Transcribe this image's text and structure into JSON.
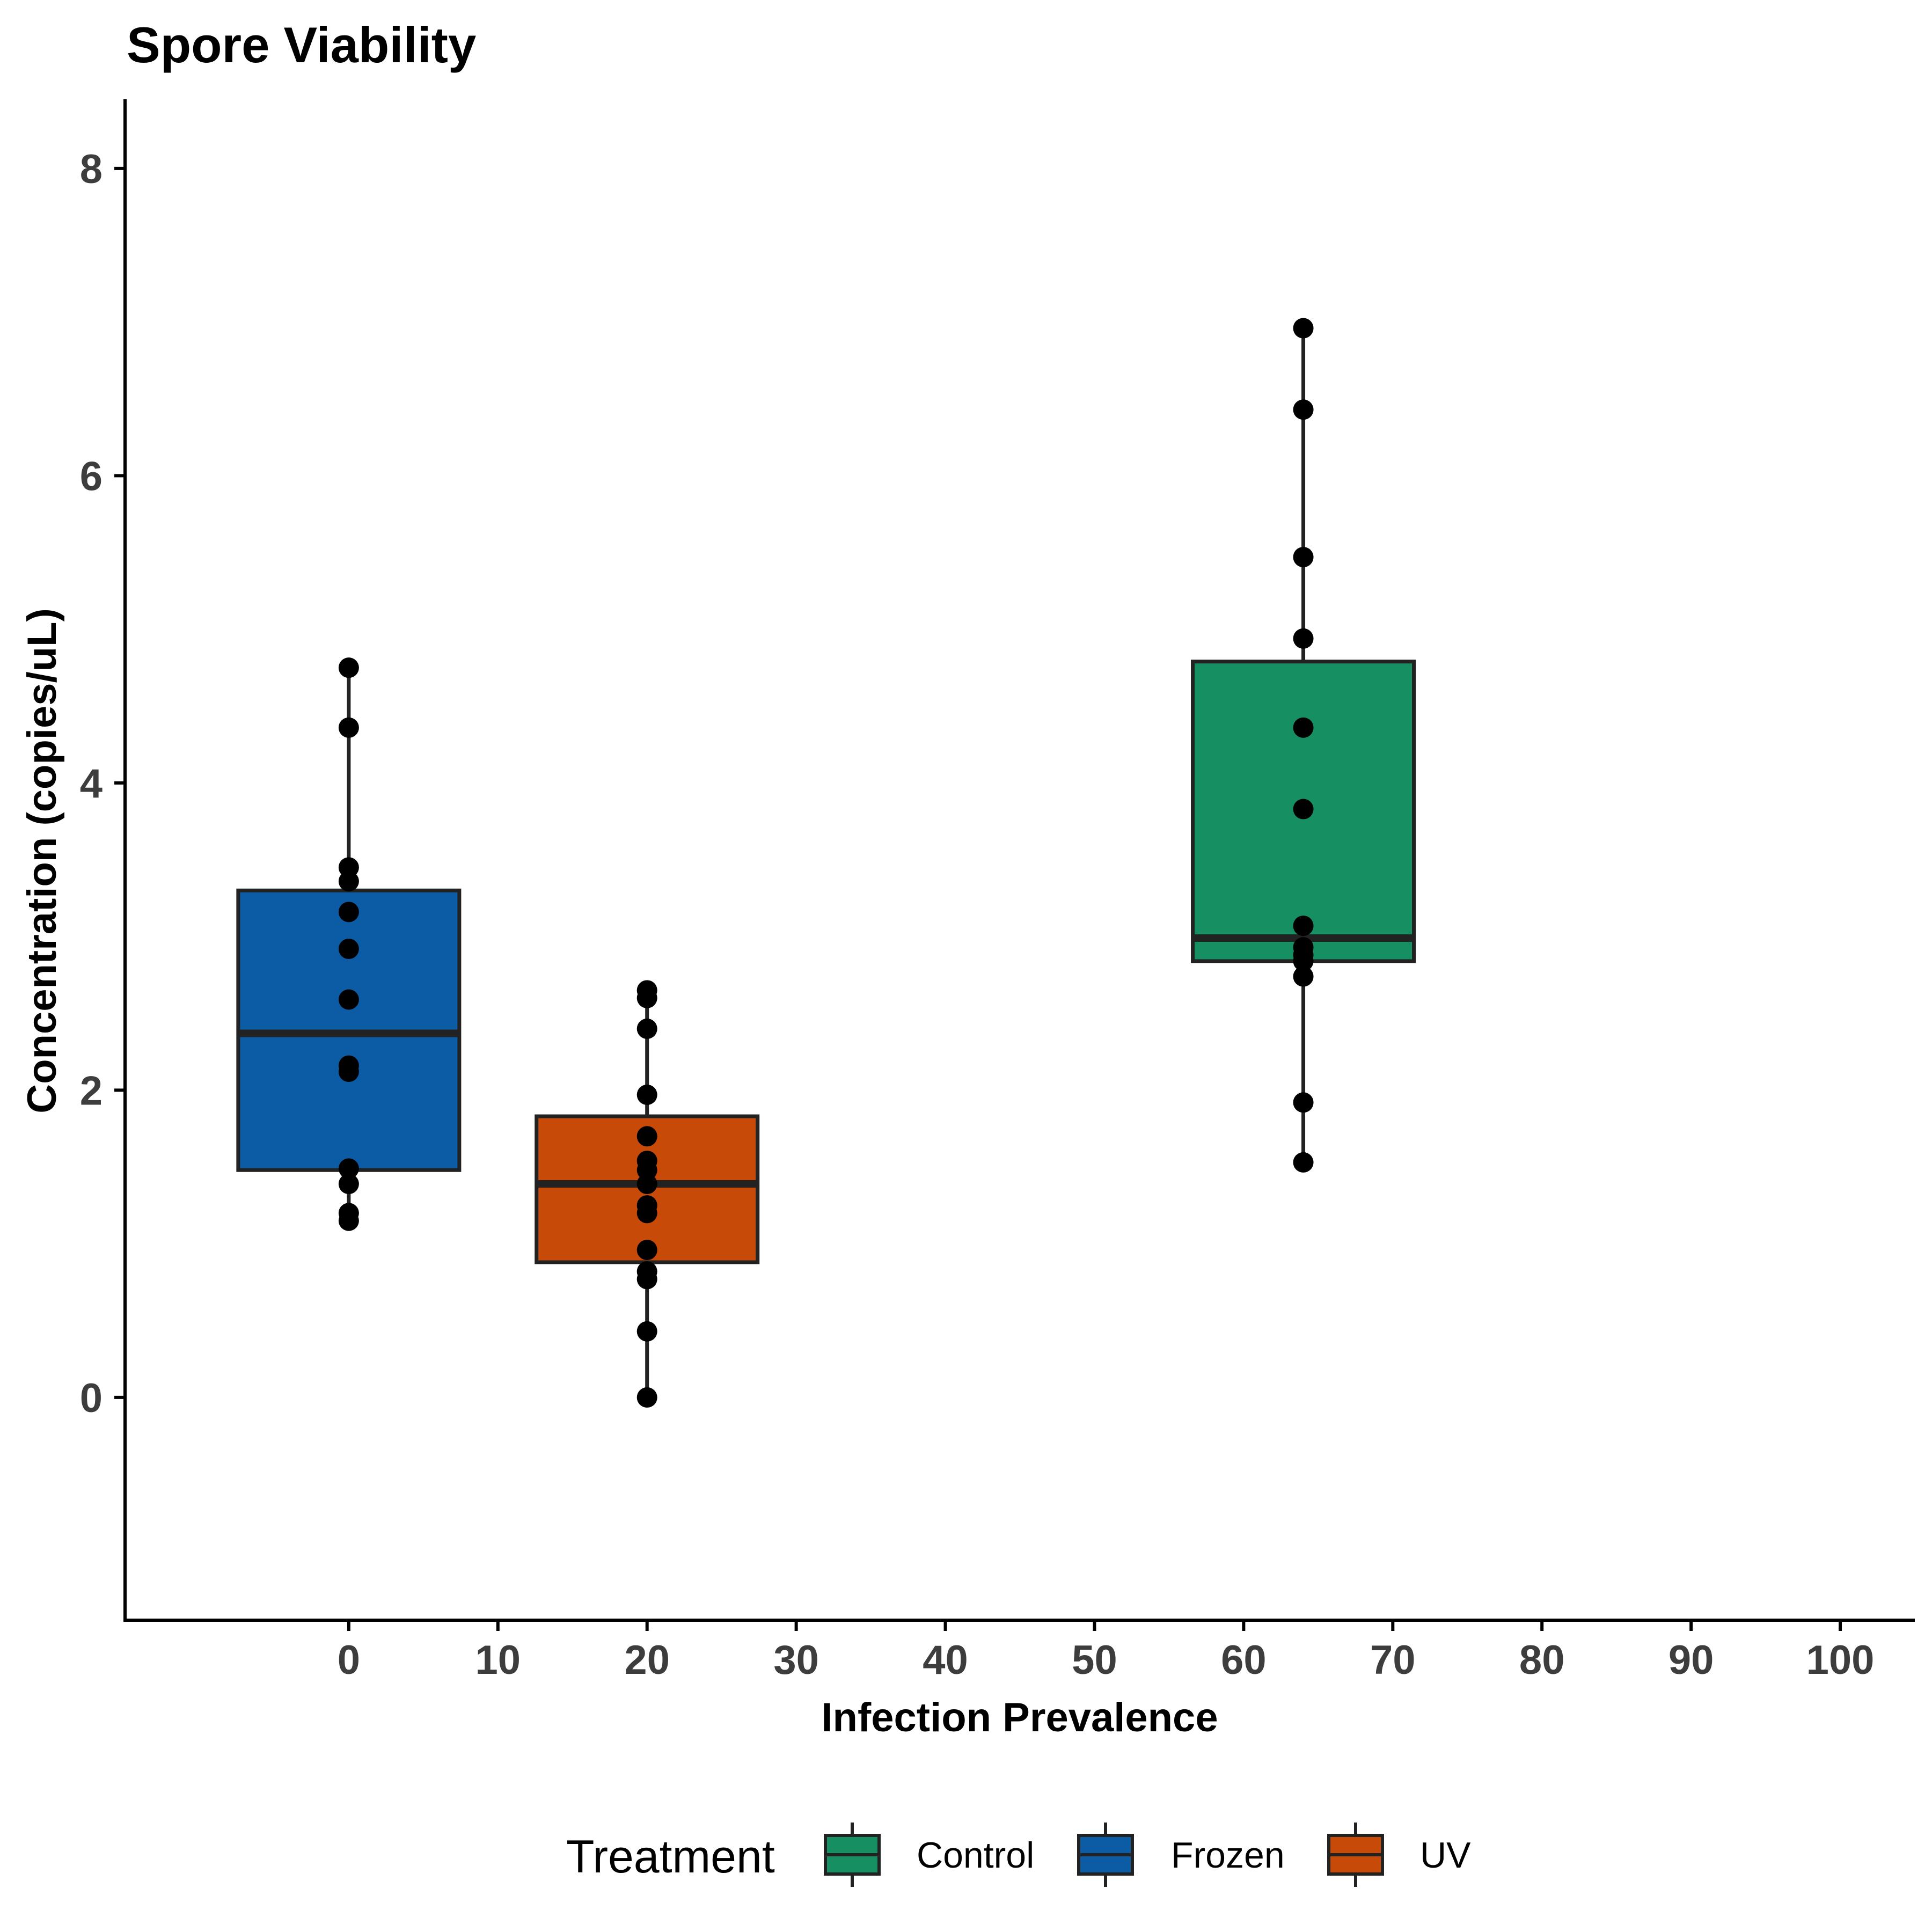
{
  "chart_data": {
    "type": "box",
    "title": "Spore Viability",
    "xlabel": "Infection Prevalence",
    "ylabel": "Concentration (copies/uL)",
    "xlim": [
      -15,
      105
    ],
    "ylim": [
      -1.45,
      8.45
    ],
    "x_ticks": [
      0,
      10,
      20,
      30,
      40,
      50,
      60,
      70,
      80,
      90,
      100
    ],
    "y_ticks": [
      0,
      2,
      4,
      6,
      8
    ],
    "grid": false,
    "legend": {
      "title": "Treatment",
      "position": "bottom",
      "entries": [
        "Control",
        "Frozen",
        "UV"
      ]
    },
    "series": [
      {
        "name": "Frozen",
        "color": "#0b5ca4",
        "x": 0,
        "box": {
          "whisker_low": 1.15,
          "q1": 1.48,
          "median": 2.37,
          "q3": 3.3,
          "whisker_high": 4.75
        },
        "points": [
          4.75,
          4.36,
          3.45,
          3.36,
          3.16,
          2.92,
          2.59,
          2.16,
          2.12,
          1.49,
          1.39,
          1.2,
          1.15
        ]
      },
      {
        "name": "UV",
        "color": "#c84a08",
        "x": 20,
        "box": {
          "whisker_low": 0.0,
          "q1": 0.88,
          "median": 1.39,
          "q3": 1.83,
          "whisker_high": 2.65
        },
        "points": [
          2.65,
          2.6,
          2.4,
          1.97,
          1.7,
          1.54,
          1.48,
          1.39,
          1.25,
          1.2,
          0.96,
          0.82,
          0.77,
          0.43,
          0.0
        ]
      },
      {
        "name": "Control",
        "color": "#168f62",
        "x": 64,
        "box": {
          "whisker_low": 1.53,
          "q1": 2.84,
          "median": 2.99,
          "q3": 4.79,
          "whisker_high": 6.96
        },
        "points": [
          6.96,
          6.43,
          5.47,
          4.94,
          4.36,
          3.83,
          3.07,
          2.93,
          2.88,
          2.84,
          2.74,
          1.92,
          1.53
        ]
      }
    ]
  }
}
